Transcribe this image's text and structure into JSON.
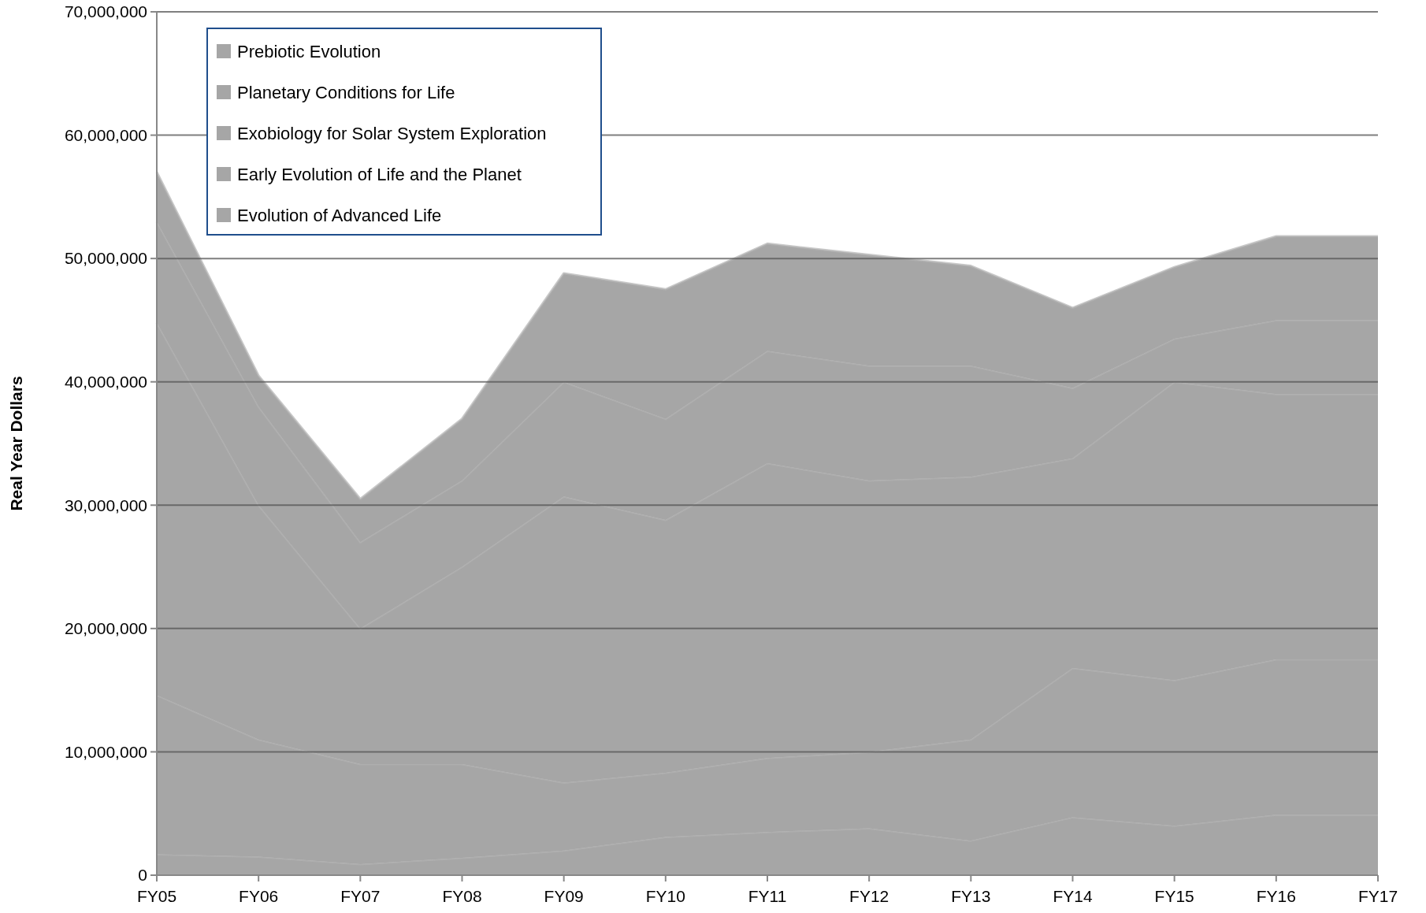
{
  "chart_data": {
    "type": "area",
    "stacked": true,
    "ylabel": "Real Year Dollars",
    "categories": [
      "FY05",
      "FY06",
      "FY07",
      "FY08",
      "FY09",
      "FY10",
      "FY11",
      "FY12",
      "FY13",
      "FY14",
      "FY15",
      "FY16",
      "FY17"
    ],
    "series": [
      {
        "name": "Evolution of Advanced Life",
        "color": "#a6a6a6",
        "values": [
          1700000,
          1500000,
          900000,
          1400000,
          2000000,
          3100000,
          3500000,
          3800000,
          2800000,
          4700000,
          4000000,
          4900000,
          4900000
        ]
      },
      {
        "name": "Early Evolution of Life and the Planet",
        "color": "#a6a6a6",
        "values": [
          12900000,
          9500000,
          8100000,
          7600000,
          5500000,
          5200000,
          6000000,
          6200000,
          8200000,
          12100000,
          11800000,
          12600000,
          12600000
        ]
      },
      {
        "name": "Exobiology for Solar System Exploration",
        "color": "#a6a6a6",
        "values": [
          30200000,
          19000000,
          11000000,
          16000000,
          23200000,
          20500000,
          23900000,
          22000000,
          21300000,
          17000000,
          24200000,
          21500000,
          21500000
        ]
      },
      {
        "name": "Planetary Conditions for Life",
        "color": "#a6a6a6",
        "values": [
          8200000,
          8000000,
          7000000,
          7000000,
          9300000,
          8200000,
          9100000,
          9300000,
          9000000,
          5700000,
          3500000,
          6000000,
          6000000
        ]
      },
      {
        "name": "Prebiotic Evolution",
        "color": "#a6a6a6",
        "values": [
          4000000,
          2500000,
          3500000,
          5000000,
          8800000,
          10500000,
          8700000,
          9000000,
          8100000,
          6500000,
          5800000,
          6800000,
          6800000
        ]
      }
    ],
    "ylim": [
      0,
      70000000
    ],
    "yticks": [
      {
        "value": 0,
        "label": "0"
      },
      {
        "value": 10000000,
        "label": "10,000,000"
      },
      {
        "value": 20000000,
        "label": "20,000,000"
      },
      {
        "value": 30000000,
        "label": "30,000,000"
      },
      {
        "value": 40000000,
        "label": "40,000,000"
      },
      {
        "value": 50000000,
        "label": "50,000,000"
      },
      {
        "value": 60000000,
        "label": "60,000,000"
      },
      {
        "value": 70000000,
        "label": "70,000,000"
      }
    ],
    "grid": "y",
    "legend": "top left"
  }
}
